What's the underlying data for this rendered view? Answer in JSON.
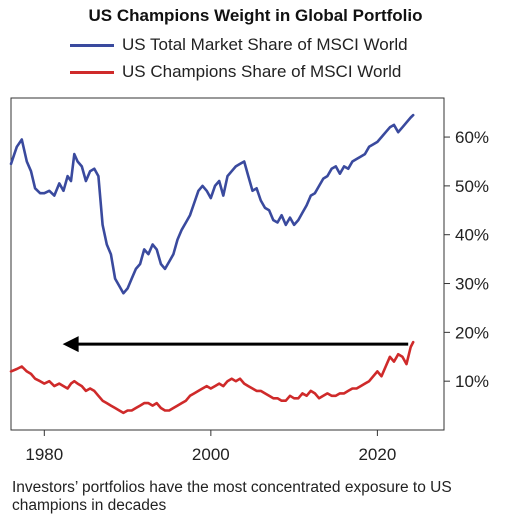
{
  "chart_data": {
    "type": "line",
    "title": "US Champions Weight in Global Portfolio",
    "xlabel": "",
    "ylabel": "",
    "xlim": [
      1976,
      2028
    ],
    "ylim": [
      0,
      68
    ],
    "x_ticks": [
      "1980",
      "2000",
      "2020"
    ],
    "y_ticks": [
      "10%",
      "20%",
      "30%",
      "40%",
      "50%",
      "60%"
    ],
    "y_tick_values": [
      10,
      20,
      30,
      40,
      50,
      60
    ],
    "y_axis_side": "right",
    "legend_position": "top-center",
    "series": [
      {
        "name": "US Total Market Share of MSCI World",
        "color": "#3a4a9e",
        "x": [
          1976.0,
          1976.7,
          1977.3,
          1977.9,
          1978.4,
          1978.9,
          1979.5,
          1980.0,
          1980.6,
          1981.2,
          1981.8,
          1982.3,
          1982.8,
          1983.2,
          1983.6,
          1984.0,
          1984.5,
          1985.0,
          1985.5,
          1986.0,
          1986.5,
          1987.0,
          1987.5,
          1988.0,
          1988.5,
          1989.0,
          1989.5,
          1990.0,
          1990.5,
          1991.0,
          1991.5,
          1992.0,
          1992.5,
          1993.0,
          1993.5,
          1994.0,
          1994.5,
          1995.0,
          1995.5,
          1996.0,
          1996.5,
          1997.0,
          1997.5,
          1998.0,
          1998.5,
          1999.0,
          1999.5,
          2000.0,
          2000.5,
          2001.0,
          2001.5,
          2002.0,
          2002.5,
          2003.0,
          2003.5,
          2004.0,
          2004.5,
          2005.0,
          2005.5,
          2006.0,
          2006.5,
          2007.0,
          2007.5,
          2008.0,
          2008.5,
          2009.0,
          2009.5,
          2010.0,
          2010.5,
          2011.0,
          2011.5,
          2012.0,
          2012.5,
          2013.0,
          2013.5,
          2014.0,
          2014.5,
          2015.0,
          2015.5,
          2016.0,
          2016.5,
          2017.0,
          2017.5,
          2018.0,
          2018.5,
          2019.0,
          2019.5,
          2020.0,
          2020.5,
          2021.0,
          2021.5,
          2022.0,
          2022.5,
          2023.0,
          2023.5,
          2024.0,
          2024.3
        ],
        "values": [
          54.5,
          58.0,
          59.5,
          55.0,
          53.0,
          49.5,
          48.5,
          48.5,
          49.0,
          48.0,
          50.5,
          49.0,
          52.0,
          51.0,
          56.5,
          55.0,
          54.0,
          51.0,
          53.0,
          53.5,
          52.0,
          42.0,
          38.0,
          36.0,
          31.0,
          29.5,
          28.0,
          29.0,
          31.0,
          33.0,
          34.0,
          37.0,
          36.0,
          38.0,
          37.0,
          34.0,
          33.0,
          34.5,
          36.0,
          39.0,
          41.0,
          42.5,
          44.0,
          46.5,
          49.0,
          50.0,
          49.0,
          47.5,
          50.0,
          51.0,
          48.0,
          52.0,
          53.0,
          54.0,
          54.5,
          55.0,
          52.0,
          49.0,
          49.5,
          47.0,
          45.5,
          45.0,
          43.0,
          42.5,
          44.0,
          42.0,
          43.5,
          42.0,
          43.0,
          44.5,
          46.0,
          48.0,
          48.5,
          50.0,
          51.5,
          52.0,
          53.5,
          54.0,
          52.5,
          54.0,
          53.5,
          55.0,
          55.5,
          56.0,
          56.5,
          58.0,
          58.5,
          59.0,
          60.0,
          61.0,
          62.0,
          62.5,
          61.0,
          62.0,
          63.0,
          64.0,
          64.5
        ]
      },
      {
        "name": "US Champions Share of MSCI World",
        "color": "#cf2a2a",
        "x": [
          1976.0,
          1976.7,
          1977.3,
          1977.9,
          1978.4,
          1978.9,
          1979.5,
          1980.0,
          1980.6,
          1981.2,
          1981.8,
          1982.3,
          1982.8,
          1983.2,
          1983.6,
          1984.0,
          1984.5,
          1985.0,
          1985.5,
          1986.0,
          1986.5,
          1987.0,
          1987.5,
          1988.0,
          1988.5,
          1989.0,
          1989.5,
          1990.0,
          1990.5,
          1991.0,
          1991.5,
          1992.0,
          1992.5,
          1993.0,
          1993.5,
          1994.0,
          1994.5,
          1995.0,
          1995.5,
          1996.0,
          1996.5,
          1997.0,
          1997.5,
          1998.0,
          1998.5,
          1999.0,
          1999.5,
          2000.0,
          2000.5,
          2001.0,
          2001.5,
          2002.0,
          2002.5,
          2003.0,
          2003.5,
          2004.0,
          2004.5,
          2005.0,
          2005.5,
          2006.0,
          2006.5,
          2007.0,
          2007.5,
          2008.0,
          2008.5,
          2009.0,
          2009.5,
          2010.0,
          2010.5,
          2011.0,
          2011.5,
          2012.0,
          2012.5,
          2013.0,
          2013.5,
          2014.0,
          2014.5,
          2015.0,
          2015.5,
          2016.0,
          2016.5,
          2017.0,
          2017.5,
          2018.0,
          2018.5,
          2019.0,
          2019.5,
          2020.0,
          2020.5,
          2021.0,
          2021.5,
          2022.0,
          2022.5,
          2023.0,
          2023.5,
          2024.0,
          2024.3
        ],
        "values": [
          12.0,
          12.5,
          13.0,
          12.0,
          11.5,
          10.5,
          10.0,
          9.5,
          10.0,
          9.0,
          9.5,
          9.0,
          8.5,
          9.5,
          10.0,
          9.5,
          9.0,
          8.0,
          8.5,
          8.0,
          7.0,
          6.0,
          5.5,
          5.0,
          4.5,
          4.0,
          3.5,
          4.0,
          4.0,
          4.5,
          5.0,
          5.5,
          5.5,
          5.0,
          5.5,
          4.5,
          4.0,
          4.0,
          4.5,
          5.0,
          5.5,
          6.0,
          7.0,
          7.5,
          8.0,
          8.5,
          9.0,
          8.5,
          9.0,
          9.5,
          9.0,
          10.0,
          10.5,
          10.0,
          10.5,
          9.5,
          9.0,
          8.5,
          8.0,
          8.0,
          7.5,
          7.0,
          6.5,
          6.5,
          6.0,
          6.0,
          7.0,
          6.5,
          6.5,
          7.5,
          7.0,
          8.0,
          7.5,
          6.5,
          7.0,
          7.5,
          7.0,
          7.0,
          7.5,
          7.5,
          8.0,
          8.5,
          8.5,
          9.0,
          9.5,
          10.0,
          11.0,
          12.0,
          11.0,
          13.0,
          15.0,
          14.0,
          15.5,
          15.0,
          13.5,
          17.0,
          18.0
        ]
      }
    ],
    "annotations": [
      {
        "type": "arrow",
        "direction": "left",
        "x_start": 2023.7,
        "x_end": 1982.2,
        "y": 17.6,
        "color": "#000000"
      }
    ],
    "caption": "Investors’ portfolios have the most concentrated exposure to US champions in decades"
  }
}
